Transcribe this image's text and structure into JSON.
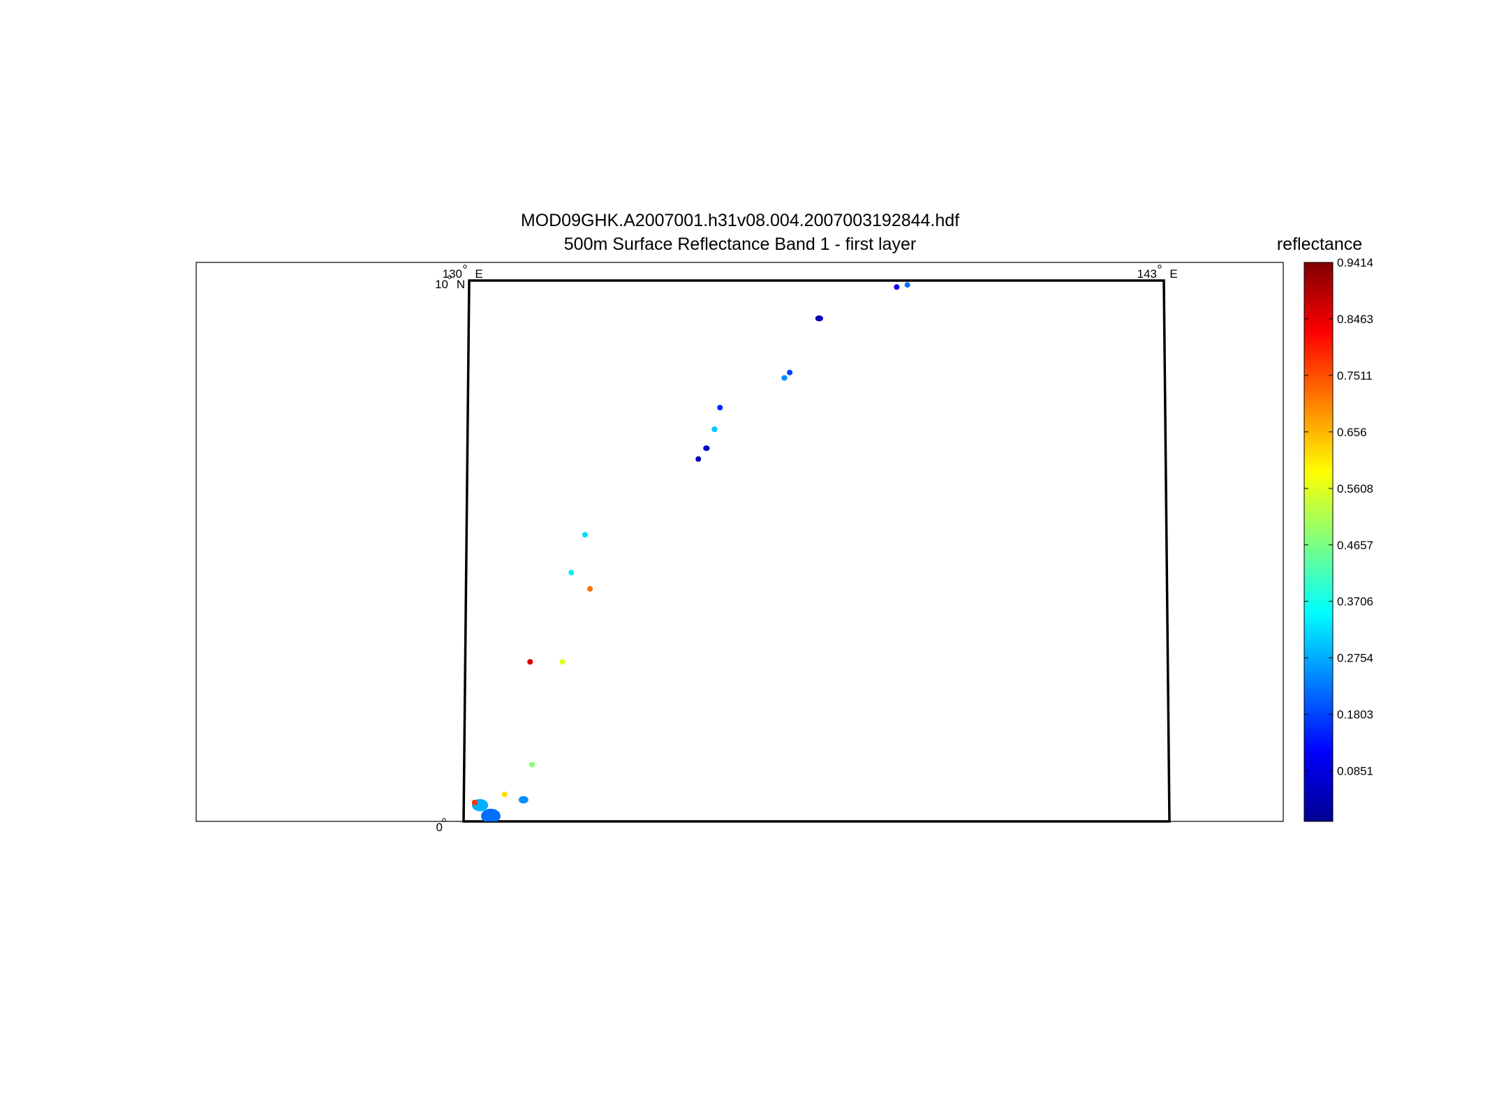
{
  "title": "MOD09GHK.A2007001.h31v08.004.2007003192844.hdf",
  "subtitle": "500m Surface Reflectance Band 1 - first layer",
  "map": {
    "lon_labels": [
      {
        "value": 130,
        "text": "130",
        "suffix": "E"
      },
      {
        "value": 143,
        "text": "143",
        "suffix": "E"
      }
    ],
    "lat_labels": [
      {
        "value": 10,
        "text": "10",
        "suffix": "N"
      },
      {
        "value": 0,
        "text": "0",
        "suffix": ""
      }
    ],
    "lon_range": [
      130,
      143
    ],
    "lat_range": [
      0,
      10
    ]
  },
  "colorbar": {
    "title": "reflectance",
    "min": 0.0,
    "max": 0.9414,
    "colormap": "jet",
    "ticks": [
      {
        "value": 0.9414,
        "text": "0.9414"
      },
      {
        "value": 0.8463,
        "text": "0.8463"
      },
      {
        "value": 0.7511,
        "text": "0.7511"
      },
      {
        "value": 0.656,
        "text": "0.656"
      },
      {
        "value": 0.5608,
        "text": "0.5608"
      },
      {
        "value": 0.4657,
        "text": "0.4657"
      },
      {
        "value": 0.3706,
        "text": "0.3706"
      },
      {
        "value": 0.2754,
        "text": "0.2754"
      },
      {
        "value": 0.1803,
        "text": "0.1803"
      },
      {
        "value": 0.0851,
        "text": "0.0851"
      }
    ]
  },
  "chart_data": {
    "type": "heatmap",
    "title": "MOD09GHK.A2007001.h31v08.004.2007003192844.hdf",
    "subtitle": "500m Surface Reflectance Band 1 - first layer",
    "x_range": [
      130,
      143
    ],
    "y_range": [
      0,
      10
    ],
    "value_range": [
      0.0,
      0.9414
    ],
    "points": [
      {
        "lon": 138.0,
        "lat": 9.88,
        "r": 0.07,
        "value": 0.1
      },
      {
        "lon": 138.2,
        "lat": 9.92,
        "r": 0.05,
        "value": 0.22
      },
      {
        "lon": 136.55,
        "lat": 9.3,
        "r": 0.12,
        "value": 0.05
      },
      {
        "lon": 135.9,
        "lat": 8.2,
        "r": 0.09,
        "value": 0.25
      },
      {
        "lon": 136.0,
        "lat": 8.3,
        "r": 0.05,
        "value": 0.18
      },
      {
        "lon": 134.7,
        "lat": 7.65,
        "r": 0.06,
        "value": 0.15
      },
      {
        "lon": 134.6,
        "lat": 7.25,
        "r": 0.09,
        "value": 0.3
      },
      {
        "lon": 134.45,
        "lat": 6.9,
        "r": 0.1,
        "value": 0.07
      },
      {
        "lon": 134.3,
        "lat": 6.7,
        "r": 0.08,
        "value": 0.05
      },
      {
        "lon": 132.2,
        "lat": 5.3,
        "r": 0.06,
        "value": 0.32
      },
      {
        "lon": 131.95,
        "lat": 4.6,
        "r": 0.05,
        "value": 0.34
      },
      {
        "lon": 132.3,
        "lat": 4.3,
        "r": 0.06,
        "value": 0.72
      },
      {
        "lon": 131.2,
        "lat": 2.95,
        "r": 0.06,
        "value": 0.86
      },
      {
        "lon": 131.8,
        "lat": 2.95,
        "r": 0.06,
        "value": 0.56
      },
      {
        "lon": 131.25,
        "lat": 1.05,
        "r": 0.07,
        "value": 0.48
      },
      {
        "lon": 130.75,
        "lat": 0.5,
        "r": 0.04,
        "value": 0.62
      },
      {
        "lon": 131.1,
        "lat": 0.4,
        "r": 0.15,
        "value": 0.25
      },
      {
        "lon": 130.3,
        "lat": 0.3,
        "r": 0.25,
        "value": 0.28
      },
      {
        "lon": 130.5,
        "lat": 0.1,
        "r": 0.3,
        "value": 0.22
      },
      {
        "lon": 130.2,
        "lat": 0.35,
        "r": 0.07,
        "value": 0.78
      }
    ]
  }
}
